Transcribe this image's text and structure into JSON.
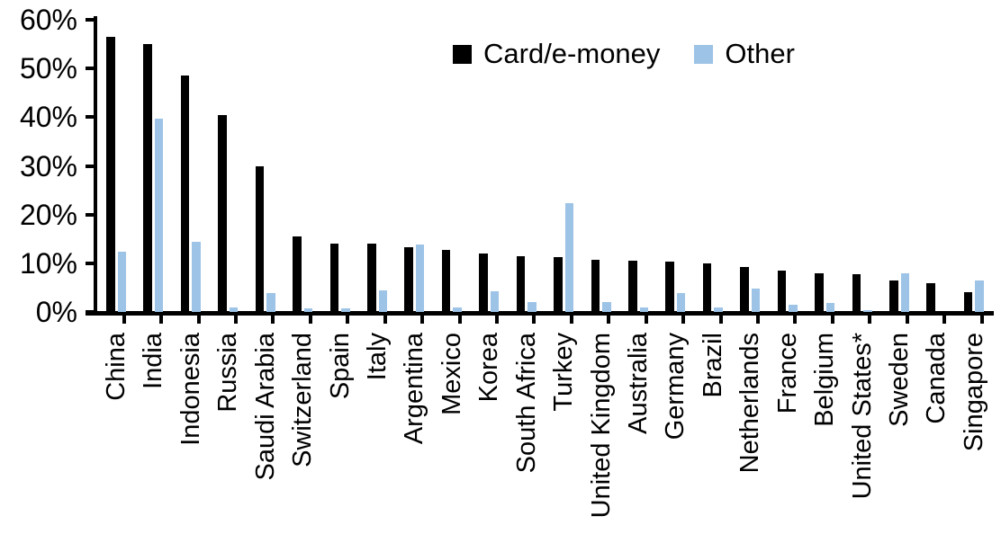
{
  "chart_data": {
    "type": "bar",
    "categories": [
      "China",
      "India",
      "Indonesia",
      "Russia",
      "Saudi Arabia",
      "Switzerland",
      "Spain",
      "Italy",
      "Argentina",
      "Mexico",
      "Korea",
      "South Africa",
      "Turkey",
      "United Kingdom",
      "Australia",
      "Germany",
      "Brazil",
      "Netherlands",
      "France",
      "Belgium",
      "United States*",
      "Sweden",
      "Canada",
      "Singapore"
    ],
    "series": [
      {
        "name": "Card/e-money",
        "color": "#000000",
        "values": [
          56.5,
          55,
          48.5,
          40.5,
          30,
          15.5,
          14,
          14,
          13.3,
          12.8,
          12,
          11.5,
          11.3,
          10.8,
          10.5,
          10.4,
          10,
          9.3,
          8.5,
          8,
          7.8,
          6.5,
          6,
          4
        ]
      },
      {
        "name": "Other",
        "color": "#9DC3E6",
        "values": [
          12.3,
          39.7,
          14.4,
          1,
          3.8,
          0.8,
          0.8,
          4.4,
          13.8,
          1,
          4.3,
          2,
          22.4,
          2,
          1,
          3.9,
          1,
          4.8,
          1.4,
          1.9,
          0.3,
          8,
          0,
          6.4
        ]
      }
    ],
    "y_axis": {
      "tick_labels": [
        "60%",
        "50%",
        "40%",
        "30%",
        "20%",
        "10%",
        "0%"
      ],
      "min": 0,
      "max": 60,
      "unit": "%"
    },
    "x_axis": {
      "label_rotation_degrees": -90
    },
    "grid": false,
    "legend": {
      "position": "top",
      "entries": [
        "Card/e-money",
        "Other"
      ]
    }
  }
}
